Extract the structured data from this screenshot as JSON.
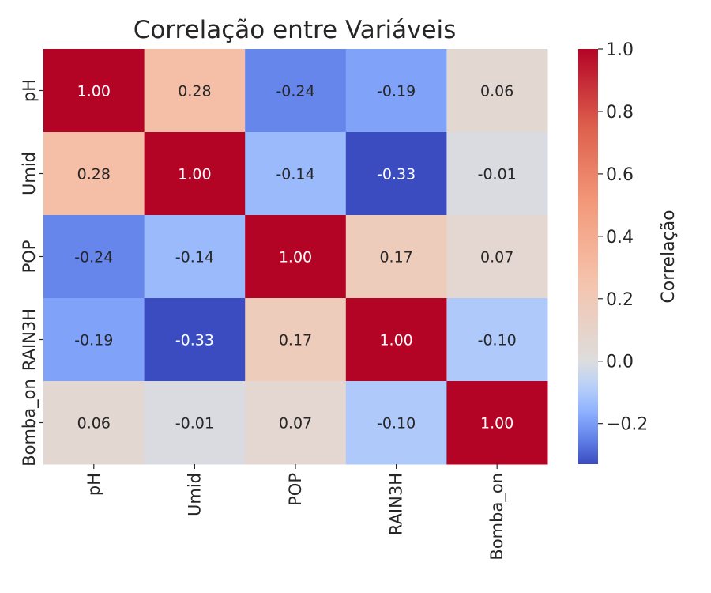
{
  "chart_data": {
    "type": "heatmap",
    "title": "Correlação entre Variáveis",
    "row_labels": [
      "pH",
      "Umid",
      "POP",
      "RAIN3H",
      "Bomba_on"
    ],
    "col_labels": [
      "pH",
      "Umid",
      "POP",
      "RAIN3H",
      "Bomba_on"
    ],
    "values": [
      [
        1.0,
        0.28,
        -0.24,
        -0.19,
        0.06
      ],
      [
        0.28,
        1.0,
        -0.14,
        -0.33,
        -0.01
      ],
      [
        -0.24,
        -0.14,
        1.0,
        0.17,
        0.07
      ],
      [
        -0.19,
        -0.33,
        0.17,
        1.0,
        -0.1
      ],
      [
        0.06,
        -0.01,
        0.07,
        -0.1,
        1.0
      ]
    ],
    "value_format": "0.00",
    "colormap": "coolwarm",
    "vmin": -0.33,
    "vmax": 1.0,
    "colorbar": {
      "label": "Correlação",
      "ticks": [
        1.0,
        0.8,
        0.6,
        0.4,
        0.2,
        0.0,
        -0.2
      ],
      "tick_labels": [
        "1.0",
        "0.8",
        "0.6",
        "0.4",
        "0.2",
        "0.0",
        "−0.2"
      ]
    }
  }
}
